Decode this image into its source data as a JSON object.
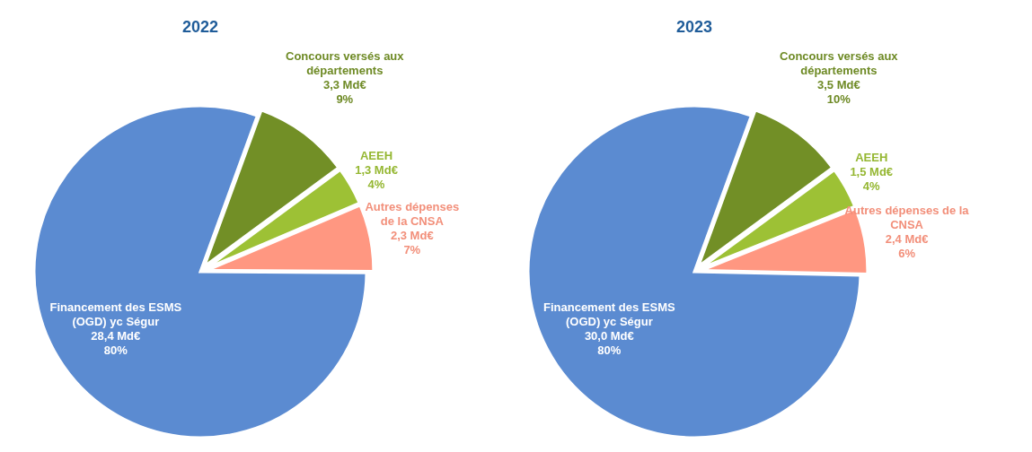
{
  "chart_data": [
    {
      "type": "pie",
      "title": "2022",
      "categories": [
        "Concours versés aux\ndépartements",
        "AEEH",
        "Autres dépenses\nde la CNSA",
        "Financement des ESMS\n(OGD) yc Ségur"
      ],
      "values": [
        3.3,
        1.3,
        2.3,
        28.4
      ],
      "value_labels": [
        "3,3 Md€\n9%",
        "1,3 Md€\n4%",
        "2,3 Md€\n7%",
        "28,4 Md€\n80%"
      ],
      "colors": [
        "#728f26",
        "#9dc135",
        "#ff9781",
        "#5b8bd1"
      ]
    },
    {
      "type": "pie",
      "title": "2023",
      "categories": [
        "Concours versés aux\ndépartements",
        "AEEH",
        "Autres dépenses de la\nCNSA",
        "Financement des ESMS\n(OGD) yc Ségur"
      ],
      "values": [
        3.5,
        1.5,
        2.4,
        30.0
      ],
      "value_labels": [
        "3,5 Md€\n10%",
        "1,5 Md€\n4%",
        "2,4 Md€\n6%",
        "30,0 Md€\n80%"
      ],
      "colors": [
        "#728f26",
        "#9dc135",
        "#ff9781",
        "#5b8bd1"
      ]
    }
  ]
}
